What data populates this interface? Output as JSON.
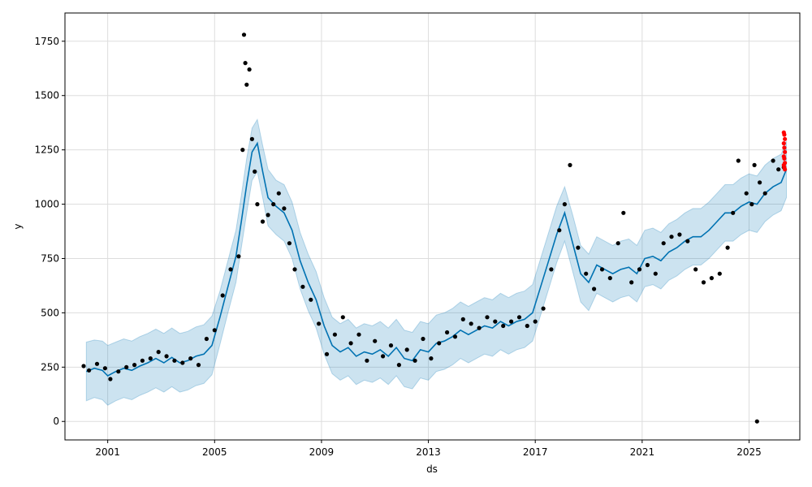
{
  "chart_data": {
    "type": "line",
    "xlabel": "ds",
    "ylabel": "y",
    "xlim": [
      1999.4,
      2026.9
    ],
    "ylim": [
      -85,
      1880
    ],
    "grid": true,
    "x_ticks": [
      {
        "value": 2001,
        "label": "2001"
      },
      {
        "value": 2005,
        "label": "2005"
      },
      {
        "value": 2009,
        "label": "2009"
      },
      {
        "value": 2013,
        "label": "2013"
      },
      {
        "value": 2017,
        "label": "2017"
      },
      {
        "value": 2021,
        "label": "2021"
      },
      {
        "value": 2025,
        "label": "2025"
      }
    ],
    "y_ticks": [
      {
        "value": 0,
        "label": "0"
      },
      {
        "value": 250,
        "label": "250"
      },
      {
        "value": 500,
        "label": "500"
      },
      {
        "value": 750,
        "label": "750"
      },
      {
        "value": 1000,
        "label": "1000"
      },
      {
        "value": 1250,
        "label": "1250"
      },
      {
        "value": 1500,
        "label": "1500"
      },
      {
        "value": 1750,
        "label": "1750"
      }
    ],
    "colors": {
      "forecast_line": "#0072B2",
      "uncertainty_band": "#0072B2",
      "actual_points": "#000000",
      "highlight_points": "#ff0000",
      "grid": "#dddddd"
    },
    "series": [
      {
        "type": "line",
        "x": [
          2000.2,
          2000.5,
          2000.8,
          2001.0,
          2001.3,
          2001.6,
          2001.9,
          2002.2,
          2002.5,
          2002.8,
          2003.1,
          2003.4,
          2003.7,
          2004.0,
          2004.3,
          2004.6,
          2004.9,
          2005.2,
          2005.5,
          2005.8,
          2006.0,
          2006.2,
          2006.4,
          2006.6,
          2006.8,
          2007.0,
          2007.3,
          2007.6,
          2007.9,
          2008.2,
          2008.5,
          2008.8,
          2009.1,
          2009.4,
          2009.7,
          2010.0,
          2010.3,
          2010.6,
          2010.9,
          2011.2,
          2011.5,
          2011.8,
          2012.1,
          2012.4,
          2012.7,
          2013.0,
          2013.3,
          2013.6,
          2013.9,
          2014.2,
          2014.5,
          2014.8,
          2015.1,
          2015.4,
          2015.7,
          2016.0,
          2016.3,
          2016.6,
          2016.9,
          2017.2,
          2017.5,
          2017.8,
          2018.1,
          2018.4,
          2018.7,
          2019.0,
          2019.3,
          2019.6,
          2019.9,
          2020.2,
          2020.5,
          2020.8,
          2021.1,
          2021.4,
          2021.7,
          2022.0,
          2022.3,
          2022.6,
          2022.9,
          2023.2,
          2023.5,
          2023.8,
          2024.1,
          2024.4,
          2024.7,
          2025.0,
          2025.3,
          2025.6,
          2025.9,
          2026.2,
          2026.4
        ],
        "y": [
          230,
          245,
          235,
          210,
          230,
          245,
          235,
          255,
          270,
          290,
          270,
          295,
          270,
          280,
          300,
          310,
          350,
          480,
          620,
          760,
          920,
          1090,
          1240,
          1280,
          1150,
          1030,
          990,
          960,
          880,
          740,
          640,
          560,
          440,
          350,
          320,
          340,
          300,
          320,
          310,
          330,
          300,
          340,
          290,
          280,
          330,
          320,
          360,
          370,
          390,
          420,
          400,
          420,
          440,
          430,
          460,
          440,
          460,
          470,
          500,
          620,
          740,
          860,
          960,
          820,
          680,
          640,
          720,
          700,
          680,
          700,
          710,
          680,
          750,
          760,
          740,
          780,
          800,
          830,
          850,
          850,
          880,
          920,
          960,
          960,
          990,
          1010,
          1000,
          1050,
          1080,
          1100,
          1160
        ]
      },
      {
        "type": "band",
        "x": [
          2000.2,
          2000.5,
          2000.8,
          2001.0,
          2001.3,
          2001.6,
          2001.9,
          2002.2,
          2002.5,
          2002.8,
          2003.1,
          2003.4,
          2003.7,
          2004.0,
          2004.3,
          2004.6,
          2004.9,
          2005.2,
          2005.5,
          2005.8,
          2006.0,
          2006.2,
          2006.4,
          2006.6,
          2006.8,
          2007.0,
          2007.3,
          2007.6,
          2007.9,
          2008.2,
          2008.5,
          2008.8,
          2009.1,
          2009.4,
          2009.7,
          2010.0,
          2010.3,
          2010.6,
          2010.9,
          2011.2,
          2011.5,
          2011.8,
          2012.1,
          2012.4,
          2012.7,
          2013.0,
          2013.3,
          2013.6,
          2013.9,
          2014.2,
          2014.5,
          2014.8,
          2015.1,
          2015.4,
          2015.7,
          2016.0,
          2016.3,
          2016.6,
          2016.9,
          2017.2,
          2017.5,
          2017.8,
          2018.1,
          2018.4,
          2018.7,
          2019.0,
          2019.3,
          2019.6,
          2019.9,
          2020.2,
          2020.5,
          2020.8,
          2021.1,
          2021.4,
          2021.7,
          2022.0,
          2022.3,
          2022.6,
          2022.9,
          2023.2,
          2023.5,
          2023.8,
          2024.1,
          2024.4,
          2024.7,
          2025.0,
          2025.3,
          2025.6,
          2025.9,
          2026.2,
          2026.4
        ],
        "y_upper": [
          365,
          375,
          370,
          350,
          365,
          380,
          370,
          390,
          405,
          425,
          405,
          430,
          405,
          415,
          435,
          445,
          485,
          600,
          740,
          880,
          1040,
          1210,
          1350,
          1390,
          1270,
          1160,
          1110,
          1090,
          1010,
          870,
          770,
          690,
          570,
          480,
          450,
          470,
          430,
          450,
          440,
          460,
          430,
          470,
          420,
          410,
          460,
          450,
          490,
          500,
          520,
          550,
          530,
          550,
          570,
          560,
          590,
          570,
          590,
          600,
          630,
          750,
          870,
          990,
          1080,
          950,
          810,
          770,
          850,
          830,
          810,
          830,
          840,
          810,
          880,
          890,
          870,
          910,
          930,
          960,
          980,
          980,
          1010,
          1050,
          1090,
          1090,
          1120,
          1140,
          1130,
          1180,
          1210,
          1230,
          1290
        ],
        "y_lower": [
          95,
          110,
          100,
          75,
          95,
          110,
          100,
          120,
          135,
          155,
          135,
          160,
          135,
          145,
          165,
          175,
          215,
          355,
          500,
          640,
          800,
          960,
          1110,
          1150,
          1030,
          900,
          860,
          830,
          750,
          610,
          510,
          430,
          310,
          220,
          190,
          210,
          170,
          190,
          180,
          200,
          170,
          210,
          160,
          150,
          200,
          190,
          230,
          240,
          260,
          290,
          270,
          290,
          310,
          300,
          330,
          310,
          330,
          340,
          370,
          490,
          610,
          730,
          830,
          690,
          550,
          510,
          590,
          570,
          550,
          570,
          580,
          550,
          620,
          630,
          610,
          650,
          670,
          700,
          720,
          720,
          750,
          790,
          830,
          830,
          860,
          880,
          870,
          920,
          950,
          970,
          1030
        ]
      },
      {
        "type": "scatter",
        "x": [
          2000.1,
          2000.3,
          2000.6,
          2000.9,
          2001.1,
          2001.4,
          2001.7,
          2002.0,
          2002.3,
          2002.6,
          2002.9,
          2003.2,
          2003.5,
          2003.8,
          2004.1,
          2004.4,
          2004.7,
          2005.0,
          2005.3,
          2005.6,
          2005.9,
          2006.05,
          2006.1,
          2006.15,
          2006.2,
          2006.3,
          2006.4,
          2006.5,
          2006.6,
          2006.8,
          2007.0,
          2007.2,
          2007.4,
          2007.6,
          2007.8,
          2008.0,
          2008.3,
          2008.6,
          2008.9,
          2009.2,
          2009.5,
          2009.8,
          2010.1,
          2010.4,
          2010.7,
          2011.0,
          2011.3,
          2011.6,
          2011.9,
          2012.2,
          2012.5,
          2012.8,
          2013.1,
          2013.4,
          2013.7,
          2014.0,
          2014.3,
          2014.6,
          2014.9,
          2015.2,
          2015.5,
          2015.8,
          2016.1,
          2016.4,
          2016.7,
          2017.0,
          2017.3,
          2017.6,
          2017.9,
          2018.1,
          2018.3,
          2018.6,
          2018.9,
          2019.2,
          2019.5,
          2019.8,
          2020.1,
          2020.3,
          2020.6,
          2020.9,
          2021.2,
          2021.5,
          2021.8,
          2022.1,
          2022.4,
          2022.7,
          2023.0,
          2023.3,
          2023.6,
          2023.9,
          2024.2,
          2024.4,
          2024.6,
          2024.9,
          2025.1,
          2025.2,
          2025.4,
          2025.6,
          2025.9,
          2026.1,
          2026.3
        ],
        "y": [
          255,
          235,
          265,
          245,
          195,
          230,
          250,
          260,
          280,
          290,
          320,
          300,
          280,
          270,
          290,
          260,
          380,
          420,
          580,
          700,
          760,
          1250,
          1780,
          1650,
          1550,
          1620,
          1300,
          1150,
          1000,
          920,
          950,
          1000,
          1050,
          980,
          820,
          700,
          620,
          560,
          450,
          310,
          400,
          480,
          360,
          400,
          280,
          370,
          300,
          350,
          260,
          330,
          280,
          380,
          290,
          360,
          410,
          390,
          470,
          450,
          430,
          480,
          460,
          440,
          460,
          480,
          440,
          460,
          520,
          700,
          880,
          1000,
          1180,
          800,
          680,
          610,
          700,
          660,
          820,
          960,
          640,
          700,
          720,
          680,
          820,
          850,
          860,
          830,
          700,
          640,
          660,
          680,
          800,
          960,
          1200,
          1050,
          1000,
          1180,
          1100,
          1050,
          1200,
          1160,
          1170
        ]
      },
      {
        "type": "scatter",
        "x": [
          2025.3
        ],
        "y": [
          0
        ]
      },
      {
        "type": "scatter",
        "highlight": true,
        "x": [
          2026.3,
          2026.32,
          2026.34,
          2026.3,
          2026.32,
          2026.34,
          2026.3,
          2026.32,
          2026.34,
          2026.3,
          2026.32,
          2026.34
        ],
        "y": [
          1330,
          1320,
          1300,
          1280,
          1260,
          1240,
          1220,
          1210,
          1190,
          1180,
          1170,
          1160
        ]
      }
    ]
  }
}
